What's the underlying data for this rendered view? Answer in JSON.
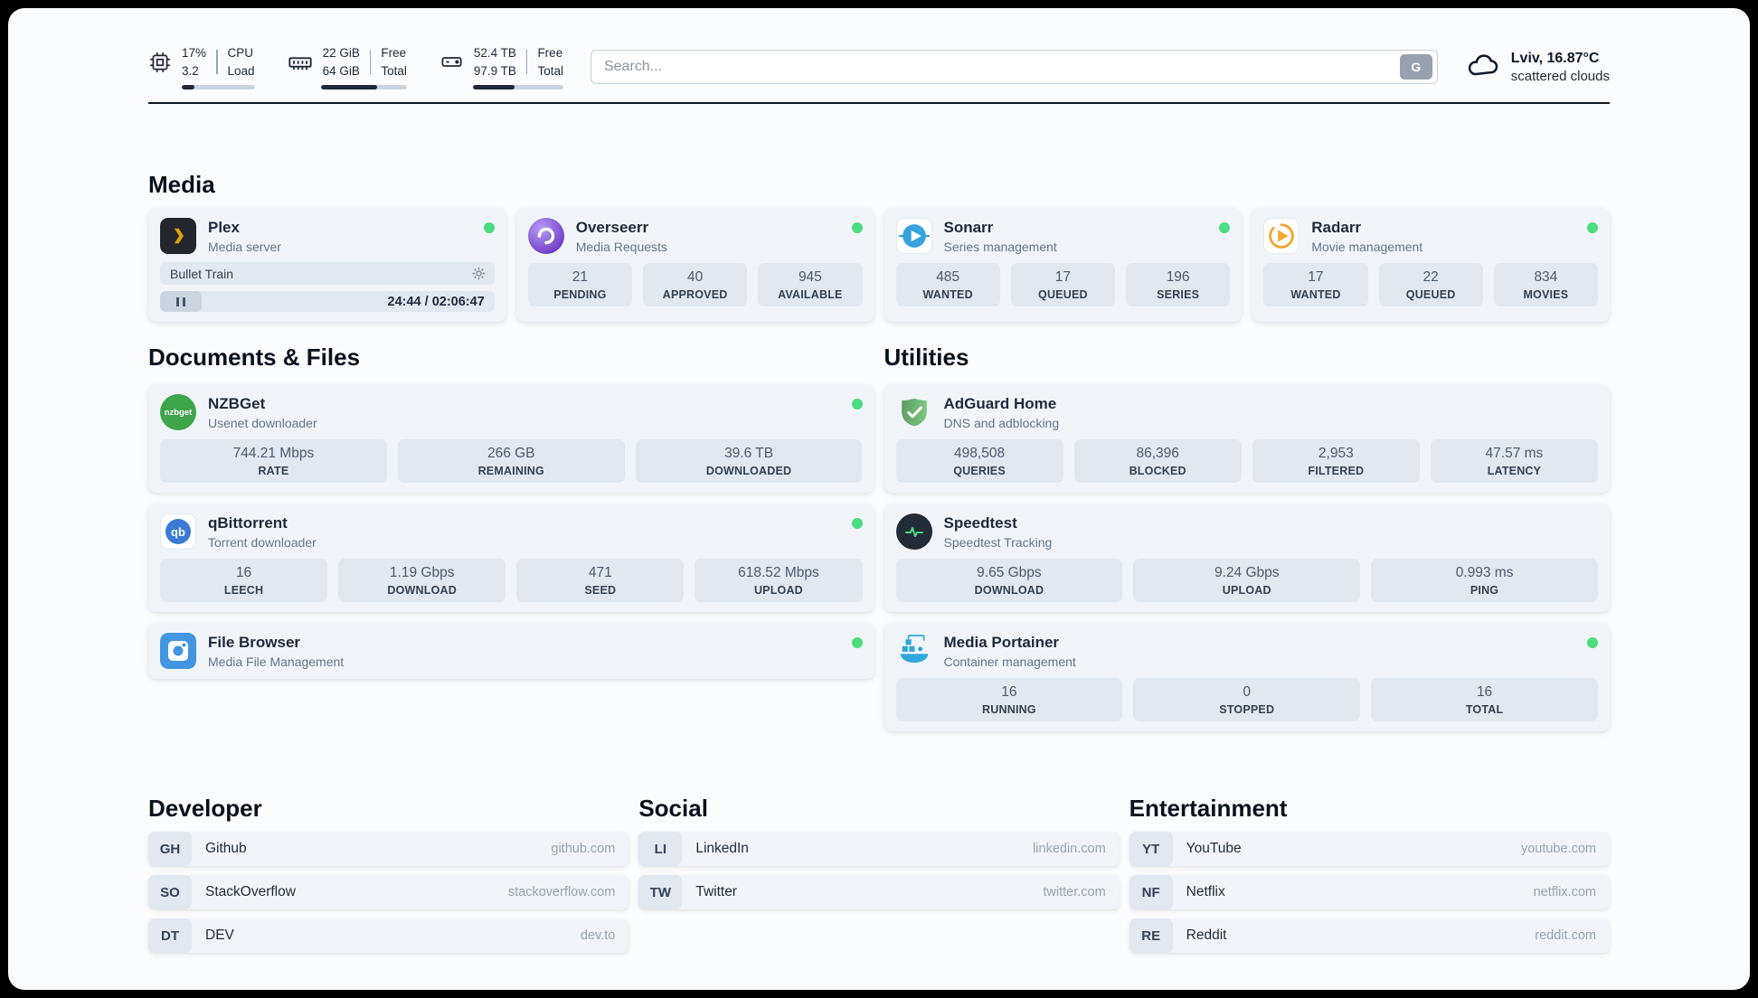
{
  "topbar": {
    "metrics": [
      {
        "name": "cpu",
        "values": [
          "17%",
          "3.2"
        ],
        "labels": [
          "CPU",
          "Load"
        ],
        "percent": 17
      },
      {
        "name": "ram",
        "values": [
          "22 GiB",
          "64 GiB"
        ],
        "labels": [
          "Free",
          "Total"
        ],
        "percent": 66
      },
      {
        "name": "disk",
        "values": [
          "52.4 TB",
          "97.9 TB"
        ],
        "labels": [
          "Free",
          "Total"
        ],
        "percent": 46
      }
    ],
    "search": {
      "placeholder": "Search...",
      "provider_label": "G"
    },
    "weather": {
      "location": "Lviv, 16.87°C",
      "condition": "scattered clouds"
    }
  },
  "media": {
    "title": "Media",
    "plex": {
      "name": "Plex",
      "subtitle": "Media server",
      "now_playing": "Bullet Train",
      "time": "24:44 / 02:06:47"
    },
    "overseerr": {
      "name": "Overseerr",
      "subtitle": "Media Requests",
      "stats": [
        {
          "value": "21",
          "label": "PENDING"
        },
        {
          "value": "40",
          "label": "APPROVED"
        },
        {
          "value": "945",
          "label": "AVAILABLE"
        }
      ]
    },
    "sonarr": {
      "name": "Sonarr",
      "subtitle": "Series management",
      "stats": [
        {
          "value": "485",
          "label": "WANTED"
        },
        {
          "value": "17",
          "label": "QUEUED"
        },
        {
          "value": "196",
          "label": "SERIES"
        }
      ]
    },
    "radarr": {
      "name": "Radarr",
      "subtitle": "Movie management",
      "stats": [
        {
          "value": "17",
          "label": "WANTED"
        },
        {
          "value": "22",
          "label": "QUEUED"
        },
        {
          "value": "834",
          "label": "MOVIES"
        }
      ]
    }
  },
  "documents": {
    "title": "Documents & Files",
    "nzbget": {
      "name": "NZBGet",
      "subtitle": "Usenet downloader",
      "icon_text": "nzbget",
      "stats": [
        {
          "value": "744.21 Mbps",
          "label": "RATE"
        },
        {
          "value": "266 GB",
          "label": "REMAINING"
        },
        {
          "value": "39.6 TB",
          "label": "DOWNLOADED"
        }
      ]
    },
    "qbittorrent": {
      "name": "qBittorrent",
      "subtitle": "Torrent downloader",
      "icon_text": "qb",
      "stats": [
        {
          "value": "16",
          "label": "LEECH"
        },
        {
          "value": "1.19 Gbps",
          "label": "DOWNLOAD"
        },
        {
          "value": "471",
          "label": "SEED"
        },
        {
          "value": "618.52 Mbps",
          "label": "UPLOAD"
        }
      ]
    },
    "filebrowser": {
      "name": "File Browser",
      "subtitle": "Media File Management"
    }
  },
  "utilities": {
    "title": "Utilities",
    "adguard": {
      "name": "AdGuard Home",
      "subtitle": "DNS and adblocking",
      "stats": [
        {
          "value": "498,508",
          "label": "QUERIES"
        },
        {
          "value": "86,396",
          "label": "BLOCKED"
        },
        {
          "value": "2,953",
          "label": "FILTERED"
        },
        {
          "value": "47.57 ms",
          "label": "LATENCY"
        }
      ]
    },
    "speedtest": {
      "name": "Speedtest",
      "subtitle": "Speedtest Tracking",
      "stats": [
        {
          "value": "9.65 Gbps",
          "label": "DOWNLOAD"
        },
        {
          "value": "9.24 Gbps",
          "label": "UPLOAD"
        },
        {
          "value": "0.993 ms",
          "label": "PING"
        }
      ]
    },
    "portainer": {
      "name": "Media Portainer",
      "subtitle": "Container management",
      "stats": [
        {
          "value": "16",
          "label": "RUNNING"
        },
        {
          "value": "0",
          "label": "STOPPED"
        },
        {
          "value": "16",
          "label": "TOTAL"
        }
      ]
    }
  },
  "bookmarks": [
    {
      "title": "Developer",
      "links": [
        {
          "abbr": "GH",
          "name": "Github",
          "url": "github.com"
        },
        {
          "abbr": "SO",
          "name": "StackOverflow",
          "url": "stackoverflow.com"
        },
        {
          "abbr": "DT",
          "name": "DEV",
          "url": "dev.to"
        }
      ]
    },
    {
      "title": "Social",
      "links": [
        {
          "abbr": "LI",
          "name": "LinkedIn",
          "url": "linkedin.com"
        },
        {
          "abbr": "TW",
          "name": "Twitter",
          "url": "twitter.com"
        }
      ]
    },
    {
      "title": "Entertainment",
      "links": [
        {
          "abbr": "YT",
          "name": "YouTube",
          "url": "youtube.com"
        },
        {
          "abbr": "NF",
          "name": "Netflix",
          "url": "netflix.com"
        },
        {
          "abbr": "RE",
          "name": "Reddit",
          "url": "reddit.com"
        }
      ]
    }
  ],
  "colors": {
    "status_online": "#4ade80",
    "plex_accent": "#e5a00d",
    "card_bg": "#f1f5f9",
    "stat_bg": "#e2e8f0"
  }
}
